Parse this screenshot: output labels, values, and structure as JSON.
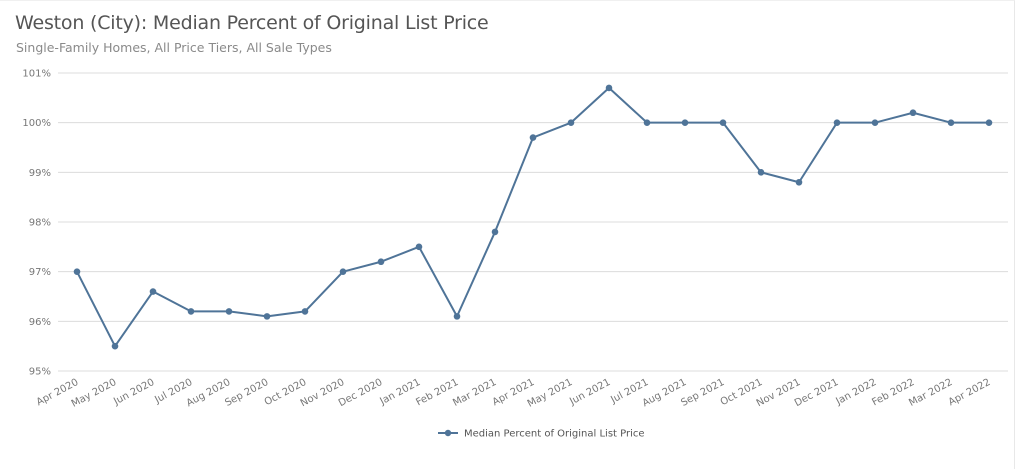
{
  "header": {
    "title": "Weston (City): Median Percent of Original List Price",
    "subtitle": "Single-Family Homes, All Price Tiers, All Sale Types"
  },
  "colors": {
    "series": "#4f7498",
    "grid": "#dcdcdc",
    "text": "#777777"
  },
  "chart_data": {
    "type": "line",
    "title": "Weston (City): Median Percent of Original List Price",
    "subtitle": "Single-Family Homes, All Price Tiers, All Sale Types",
    "xlabel": "",
    "ylabel": "",
    "ylim": [
      95,
      101
    ],
    "yticks": [
      "95%",
      "96%",
      "97%",
      "98%",
      "99%",
      "100%",
      "101%"
    ],
    "grid": true,
    "legend_position": "bottom",
    "categories": [
      "Apr 2020",
      "May 2020",
      "Jun 2020",
      "Jul 2020",
      "Aug 2020",
      "Sep 2020",
      "Oct 2020",
      "Nov 2020",
      "Dec 2020",
      "Jan 2021",
      "Feb 2021",
      "Mar 2021",
      "Apr 2021",
      "May 2021",
      "Jun 2021",
      "Jul 2021",
      "Aug 2021",
      "Sep 2021",
      "Oct 2021",
      "Nov 2021",
      "Dec 2021",
      "Jan 2022",
      "Feb 2022",
      "Mar 2022",
      "Apr 2022"
    ],
    "series": [
      {
        "name": "Median Percent of Original List Price",
        "values": [
          97.0,
          95.5,
          96.6,
          96.2,
          96.2,
          96.1,
          96.2,
          97.0,
          97.2,
          97.5,
          96.1,
          97.8,
          99.7,
          100.0,
          100.7,
          100.0,
          100.0,
          100.0,
          99.0,
          98.8,
          100.0,
          100.0,
          100.2,
          100.0,
          100.0
        ]
      }
    ]
  }
}
